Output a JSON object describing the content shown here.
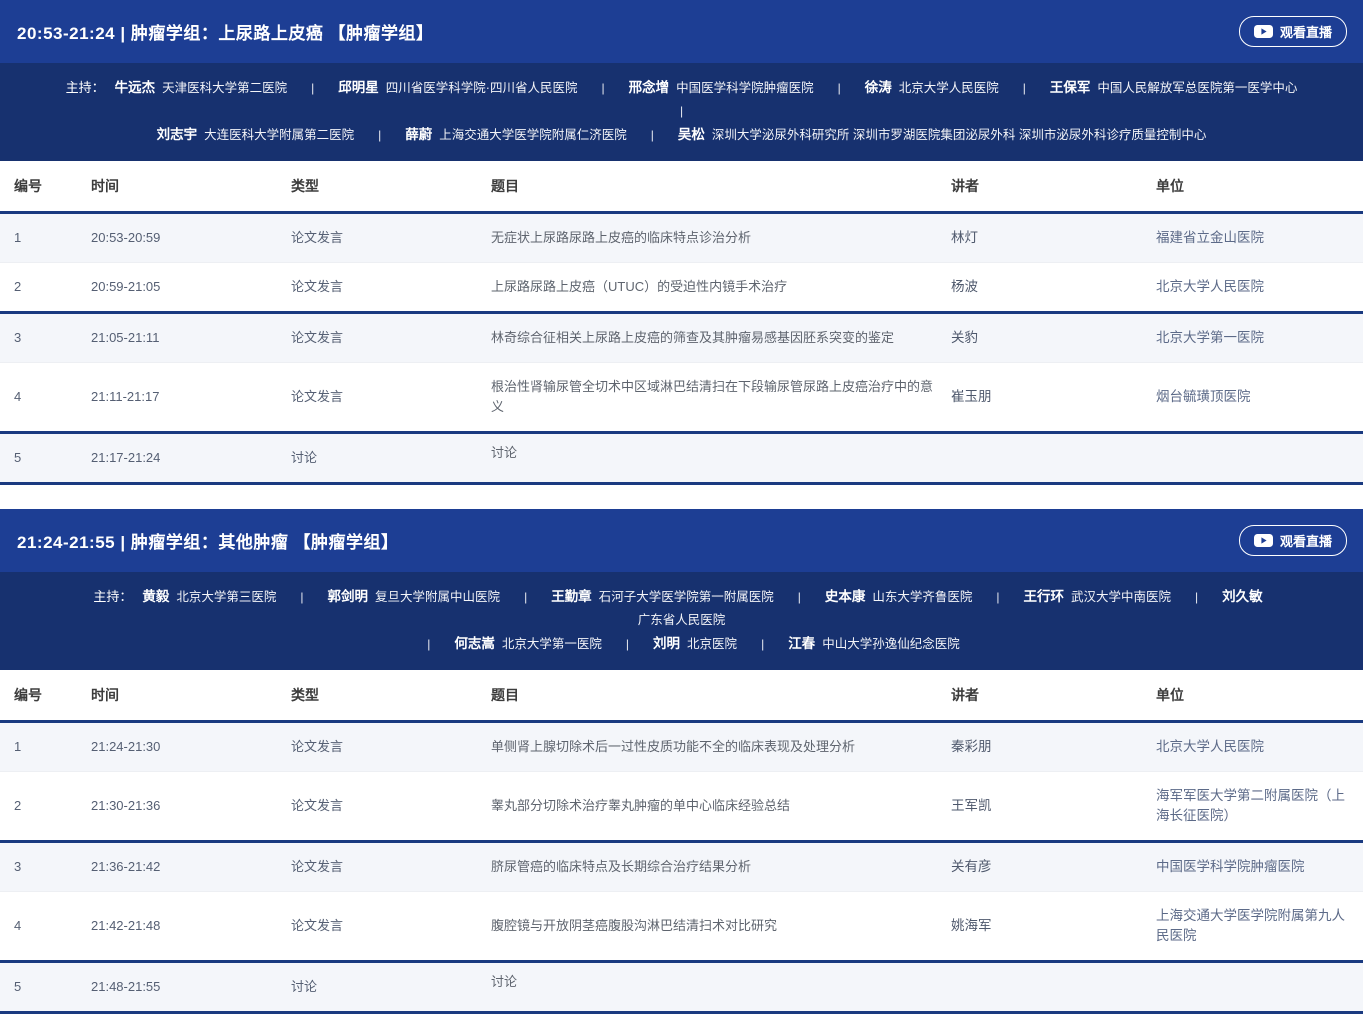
{
  "ui": {
    "live_button_label": "观看直播",
    "moderator_label": "主持：",
    "separator": "|"
  },
  "columns": [
    {
      "key": "no",
      "label": "编号"
    },
    {
      "key": "time",
      "label": "时间"
    },
    {
      "key": "type",
      "label": "类型"
    },
    {
      "key": "title",
      "label": "题目"
    },
    {
      "key": "speaker",
      "label": "讲者"
    },
    {
      "key": "org",
      "label": "单位"
    }
  ],
  "colors": {
    "header_blue": "#1d3e94",
    "moderator_navy": "#17316f",
    "rule_navy": "#1a3a80",
    "row_light": "#f4f6fa"
  },
  "sessions": [
    {
      "header_title": "20:53-21:24 | 肿瘤学组：上尿路上皮癌 【肿瘤学组】",
      "moderator_lines": [
        {
          "show_label": true,
          "leading_sep": false,
          "trailing_sep": true,
          "items": [
            {
              "name": "牛远杰",
              "org": "天津医科大学第二医院"
            },
            {
              "name": "邱明星",
              "org": "四川省医学科学院·四川省人民医院"
            },
            {
              "name": "邢念增",
              "org": "中国医学科学院肿瘤医院"
            },
            {
              "name": "徐涛",
              "org": "北京大学人民医院"
            },
            {
              "name": "王保军",
              "org": "中国人民解放军总医院第一医学中心"
            }
          ]
        },
        {
          "show_label": false,
          "leading_sep": false,
          "trailing_sep": false,
          "items": [
            {
              "name": "刘志宇",
              "org": "大连医科大学附属第二医院"
            },
            {
              "name": "薛蔚",
              "org": "上海交通大学医学院附属仁济医院"
            },
            {
              "name": "吴松",
              "org": "深圳大学泌尿外科研究所 深圳市罗湖医院集团泌尿外科 深圳市泌尿外科诊疗质量控制中心"
            }
          ]
        }
      ],
      "rows": [
        {
          "no": "1",
          "time": "20:53-20:59",
          "type": "论文发言",
          "title": "无症状上尿路尿路上皮癌的临床特点诊治分析",
          "speaker": "林灯",
          "org": "福建省立金山医院"
        },
        {
          "no": "2",
          "time": "20:59-21:05",
          "type": "论文发言",
          "title": "上尿路尿路上皮癌（UTUC）的受迫性内镜手术治疗",
          "speaker": "杨波",
          "org": "北京大学人民医院"
        },
        {
          "no": "3",
          "time": "21:05-21:11",
          "type": "论文发言",
          "title": "林奇综合征相关上尿路上皮癌的筛查及其肿瘤易感基因胚系突变的鉴定",
          "speaker": "关豹",
          "org": "北京大学第一医院"
        },
        {
          "no": "4",
          "time": "21:11-21:17",
          "type": "论文发言",
          "title": "根治性肾输尿管全切术中区域淋巴结清扫在下段输尿管尿路上皮癌治疗中的意义",
          "speaker": "崔玉朋",
          "org": "烟台毓璜顶医院"
        },
        {
          "no": "5",
          "time": "21:17-21:24",
          "type": "讨论",
          "title": "讨论",
          "speaker": "",
          "org": ""
        }
      ]
    },
    {
      "header_title": "21:24-21:55 | 肿瘤学组：其他肿瘤 【肿瘤学组】",
      "moderator_lines": [
        {
          "show_label": true,
          "leading_sep": false,
          "trailing_sep": false,
          "items": [
            {
              "name": "黄毅",
              "org": "北京大学第三医院"
            },
            {
              "name": "郭剑明",
              "org": "复旦大学附属中山医院"
            },
            {
              "name": "王勤章",
              "org": "石河子大学医学院第一附属医院"
            },
            {
              "name": "史本康",
              "org": "山东大学齐鲁医院"
            },
            {
              "name": "王行环",
              "org": "武汉大学中南医院"
            },
            {
              "name": "刘久敏",
              "org": "广东省人民医院"
            }
          ]
        },
        {
          "show_label": false,
          "leading_sep": true,
          "trailing_sep": false,
          "items": [
            {
              "name": "何志嵩",
              "org": "北京大学第一医院"
            },
            {
              "name": "刘明",
              "org": "北京医院"
            },
            {
              "name": "江春",
              "org": "中山大学孙逸仙纪念医院"
            }
          ]
        }
      ],
      "rows": [
        {
          "no": "1",
          "time": "21:24-21:30",
          "type": "论文发言",
          "title": "单侧肾上腺切除术后一过性皮质功能不全的临床表现及处理分析",
          "speaker": "秦彩朋",
          "org": "北京大学人民医院"
        },
        {
          "no": "2",
          "time": "21:30-21:36",
          "type": "论文发言",
          "title": "睾丸部分切除术治疗睾丸肿瘤的单中心临床经验总结",
          "speaker": "王军凯",
          "org": "海军军医大学第二附属医院（上海长征医院）"
        },
        {
          "no": "3",
          "time": "21:36-21:42",
          "type": "论文发言",
          "title": "脐尿管癌的临床特点及长期综合治疗结果分析",
          "speaker": "关有彦",
          "org": "中国医学科学院肿瘤医院"
        },
        {
          "no": "4",
          "time": "21:42-21:48",
          "type": "论文发言",
          "title": "腹腔镜与开放阴茎癌腹股沟淋巴结清扫术对比研究",
          "speaker": "姚海军",
          "org": "上海交通大学医学院附属第九人民医院"
        },
        {
          "no": "5",
          "time": "21:48-21:55",
          "type": "讨论",
          "title": "讨论",
          "speaker": "",
          "org": ""
        }
      ]
    }
  ]
}
